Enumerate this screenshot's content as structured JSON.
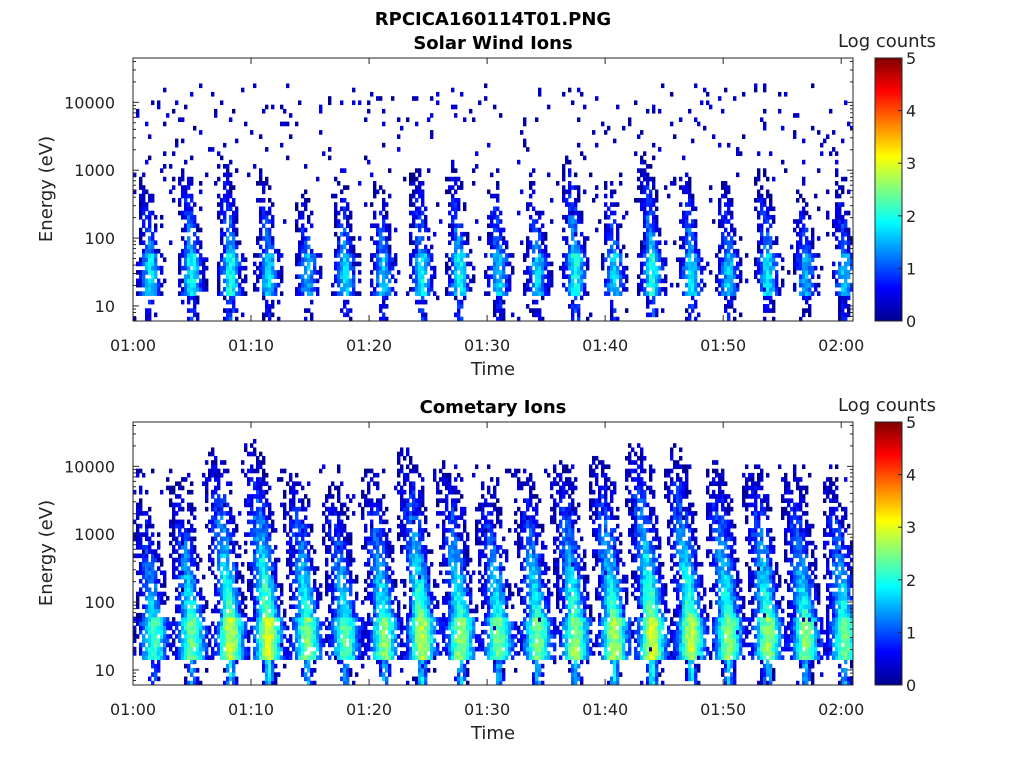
{
  "figure": {
    "title": "RPCICA160114T01.PNG"
  },
  "chart_data": [
    {
      "type": "heatmap",
      "title": "Solar Wind Ions",
      "xlabel": "Time",
      "ylabel": "Energy (eV)",
      "x_ticks": [
        "01:00",
        "01:10",
        "01:20",
        "01:30",
        "01:40",
        "01:50",
        "02:00"
      ],
      "x_range": [
        "01:00",
        "02:01"
      ],
      "y_scale": "log",
      "y_ticks": [
        10,
        100,
        1000,
        10000
      ],
      "y_tick_labels": [
        "10",
        "100",
        "1000",
        "10000"
      ],
      "y_range": [
        6,
        45000
      ],
      "colorbar": {
        "label": "Log counts",
        "range": [
          0,
          5
        ],
        "ticks": [
          "0",
          "1",
          "2",
          "3",
          "4",
          "5"
        ],
        "colormap": "jet"
      },
      "bursts": [
        {
          "t": 1.5,
          "peak": 1.7
        },
        {
          "t": 5.0,
          "peak": 1.9
        },
        {
          "t": 8.3,
          "peak": 2.0
        },
        {
          "t": 11.5,
          "peak": 1.7
        },
        {
          "t": 14.8,
          "peak": 1.5
        },
        {
          "t": 18.0,
          "peak": 1.7
        },
        {
          "t": 21.2,
          "peak": 1.6
        },
        {
          "t": 24.5,
          "peak": 1.8
        },
        {
          "t": 27.7,
          "peak": 1.9
        },
        {
          "t": 31.0,
          "peak": 1.7
        },
        {
          "t": 34.3,
          "peak": 1.6
        },
        {
          "t": 37.5,
          "peak": 2.0
        },
        {
          "t": 40.8,
          "peak": 1.6
        },
        {
          "t": 44.0,
          "peak": 2.0
        },
        {
          "t": 47.3,
          "peak": 1.8
        },
        {
          "t": 50.5,
          "peak": 1.6
        },
        {
          "t": 53.8,
          "peak": 1.8
        },
        {
          "t": 57.0,
          "peak": 1.5
        },
        {
          "t": 60.3,
          "peak": 1.6
        }
      ],
      "dominant_energy_band_eV": [
        20,
        50
      ],
      "background": "sparse low counts (0-1) up to ~20000 eV"
    },
    {
      "type": "heatmap",
      "title": "Cometary Ions",
      "xlabel": "Time",
      "ylabel": "Energy (eV)",
      "x_ticks": [
        "01:00",
        "01:10",
        "01:20",
        "01:30",
        "01:40",
        "01:50",
        "02:00"
      ],
      "x_range": [
        "01:00",
        "02:01"
      ],
      "y_scale": "log",
      "y_ticks": [
        10,
        100,
        1000,
        10000
      ],
      "y_tick_labels": [
        "10",
        "100",
        "1000",
        "10000"
      ],
      "y_range": [
        6,
        45000
      ],
      "colorbar": {
        "label": "Log counts",
        "range": [
          0,
          5
        ],
        "ticks": [
          "0",
          "1",
          "2",
          "3",
          "4",
          "5"
        ],
        "colormap": "jet"
      },
      "bursts": [
        {
          "t": 1.8,
          "peak": 2.1
        },
        {
          "t": 5.0,
          "peak": 2.4
        },
        {
          "t": 8.3,
          "peak": 2.8
        },
        {
          "t": 11.5,
          "peak": 2.9
        },
        {
          "t": 14.8,
          "peak": 2.5
        },
        {
          "t": 18.0,
          "peak": 2.3
        },
        {
          "t": 21.3,
          "peak": 2.5
        },
        {
          "t": 24.5,
          "peak": 2.8
        },
        {
          "t": 27.8,
          "peak": 2.6
        },
        {
          "t": 31.0,
          "peak": 2.4
        },
        {
          "t": 34.3,
          "peak": 2.5
        },
        {
          "t": 37.5,
          "peak": 2.6
        },
        {
          "t": 40.8,
          "peak": 2.7
        },
        {
          "t": 44.0,
          "peak": 2.9
        },
        {
          "t": 47.3,
          "peak": 2.8
        },
        {
          "t": 50.5,
          "peak": 2.6
        },
        {
          "t": 53.8,
          "peak": 2.6
        },
        {
          "t": 57.0,
          "peak": 2.5
        },
        {
          "t": 60.3,
          "peak": 2.4
        }
      ],
      "dominant_energy_band_eV": [
        20,
        50
      ],
      "background": "sparse low counts (0-1) up to ~10000 eV"
    }
  ]
}
